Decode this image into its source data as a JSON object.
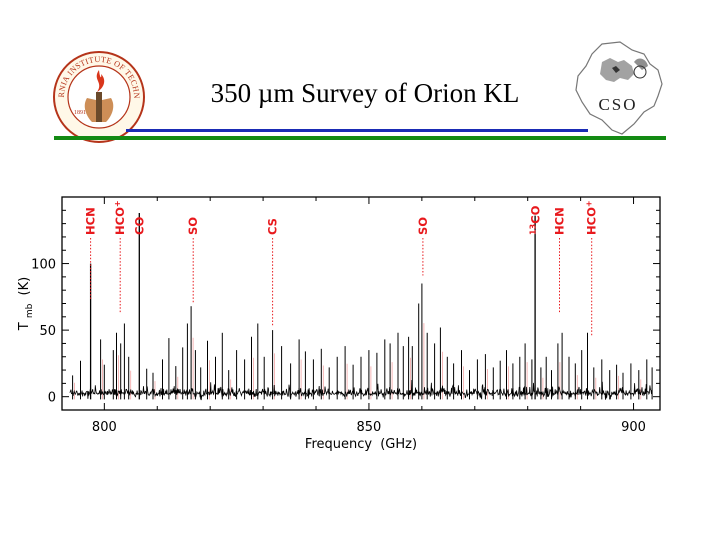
{
  "slide": {
    "title": "350 µm Survey of Orion KL"
  },
  "logos": {
    "left": {
      "name": "caltech-seal",
      "text": "CALIFORNIA INSTITUTE OF TECHNOLOGY",
      "year": "1891",
      "color": "#c23b1e"
    },
    "right": {
      "name": "cso-logo",
      "text": "CSO"
    }
  },
  "colors": {
    "title_rule": "#1a2bb5",
    "footer_rule": "#138a13",
    "line_label": "#e8191d",
    "spectrum": "#000000",
    "ghost": "#f08080"
  },
  "chart_data": {
    "type": "line",
    "xlabel": "Frequency",
    "xunit": "(GHz)",
    "ylabel": "T",
    "ylabel_sub": "mb",
    "yunit": "(K)",
    "xlim": [
      792,
      905
    ],
    "ylim": [
      -10,
      150
    ],
    "xticks": [
      800,
      850,
      900
    ],
    "yticks": [
      0,
      50,
      100
    ],
    "grid": false,
    "series": [
      {
        "peaks": [
          {
            "x": 794.0,
            "y": 16
          },
          {
            "x": 795.5,
            "y": 27
          },
          {
            "x": 797.4,
            "y": 100
          },
          {
            "x": 799.3,
            "y": 43
          },
          {
            "x": 800.0,
            "y": 24
          },
          {
            "x": 801.7,
            "y": 35
          },
          {
            "x": 802.3,
            "y": 48
          },
          {
            "x": 803.1,
            "y": 40
          },
          {
            "x": 803.8,
            "y": 55
          },
          {
            "x": 804.6,
            "y": 30
          },
          {
            "x": 806.6,
            "y": 138
          },
          {
            "x": 808.0,
            "y": 21
          },
          {
            "x": 809.2,
            "y": 18
          },
          {
            "x": 811.0,
            "y": 28
          },
          {
            "x": 812.2,
            "y": 44
          },
          {
            "x": 813.5,
            "y": 23
          },
          {
            "x": 814.8,
            "y": 37
          },
          {
            "x": 815.7,
            "y": 55
          },
          {
            "x": 816.4,
            "y": 68
          },
          {
            "x": 817.2,
            "y": 35
          },
          {
            "x": 818.2,
            "y": 22
          },
          {
            "x": 819.5,
            "y": 42
          },
          {
            "x": 821.0,
            "y": 30
          },
          {
            "x": 822.3,
            "y": 48
          },
          {
            "x": 823.5,
            "y": 20
          },
          {
            "x": 825.0,
            "y": 35
          },
          {
            "x": 826.5,
            "y": 28
          },
          {
            "x": 827.8,
            "y": 45
          },
          {
            "x": 829.0,
            "y": 55
          },
          {
            "x": 830.2,
            "y": 30
          },
          {
            "x": 831.8,
            "y": 50
          },
          {
            "x": 833.5,
            "y": 38
          },
          {
            "x": 835.2,
            "y": 25
          },
          {
            "x": 836.8,
            "y": 43
          },
          {
            "x": 838.0,
            "y": 34
          },
          {
            "x": 839.5,
            "y": 28
          },
          {
            "x": 841.0,
            "y": 36
          },
          {
            "x": 842.5,
            "y": 22
          },
          {
            "x": 844.0,
            "y": 30
          },
          {
            "x": 845.5,
            "y": 38
          },
          {
            "x": 847.0,
            "y": 24
          },
          {
            "x": 848.5,
            "y": 30
          },
          {
            "x": 850.0,
            "y": 35
          },
          {
            "x": 851.5,
            "y": 33
          },
          {
            "x": 853.0,
            "y": 43
          },
          {
            "x": 854.0,
            "y": 40
          },
          {
            "x": 855.5,
            "y": 48
          },
          {
            "x": 856.5,
            "y": 38
          },
          {
            "x": 857.5,
            "y": 45
          },
          {
            "x": 858.2,
            "y": 38
          },
          {
            "x": 859.4,
            "y": 70
          },
          {
            "x": 860.0,
            "y": 85
          },
          {
            "x": 861.0,
            "y": 48
          },
          {
            "x": 862.4,
            "y": 40
          },
          {
            "x": 863.5,
            "y": 52
          },
          {
            "x": 864.8,
            "y": 30
          },
          {
            "x": 866.0,
            "y": 25
          },
          {
            "x": 867.5,
            "y": 35
          },
          {
            "x": 869.0,
            "y": 20
          },
          {
            "x": 870.5,
            "y": 28
          },
          {
            "x": 872.0,
            "y": 32
          },
          {
            "x": 873.5,
            "y": 22
          },
          {
            "x": 874.8,
            "y": 27
          },
          {
            "x": 876.0,
            "y": 35
          },
          {
            "x": 877.2,
            "y": 25
          },
          {
            "x": 878.5,
            "y": 30
          },
          {
            "x": 879.5,
            "y": 40
          },
          {
            "x": 880.8,
            "y": 28
          },
          {
            "x": 881.4,
            "y": 136
          },
          {
            "x": 882.5,
            "y": 22
          },
          {
            "x": 883.5,
            "y": 30
          },
          {
            "x": 884.5,
            "y": 20
          },
          {
            "x": 885.7,
            "y": 40
          },
          {
            "x": 886.5,
            "y": 48
          },
          {
            "x": 887.8,
            "y": 30
          },
          {
            "x": 889.0,
            "y": 25
          },
          {
            "x": 890.2,
            "y": 35
          },
          {
            "x": 891.3,
            "y": 48
          },
          {
            "x": 892.5,
            "y": 22
          },
          {
            "x": 894.0,
            "y": 28
          },
          {
            "x": 895.5,
            "y": 20
          },
          {
            "x": 896.8,
            "y": 24
          },
          {
            "x": 898.0,
            "y": 18
          },
          {
            "x": 899.5,
            "y": 25
          },
          {
            "x": 901.0,
            "y": 20
          },
          {
            "x": 902.5,
            "y": 28
          },
          {
            "x": 903.5,
            "y": 22
          }
        ]
      }
    ],
    "annotations": [
      {
        "label": "HCN",
        "x": 797.4,
        "y_top": 70
      },
      {
        "label": "HCO+",
        "x": 803.0,
        "y_top": 60
      },
      {
        "label": "CO",
        "x": 806.6,
        "y_top": 145
      },
      {
        "label": "SO",
        "x": 816.8,
        "y_top": 68
      },
      {
        "label": "CS",
        "x": 831.8,
        "y_top": 50
      },
      {
        "label": "SO",
        "x": 860.2,
        "y_top": 88
      },
      {
        "label": "13CO",
        "x": 881.5,
        "y_top": 138
      },
      {
        "label": "HCN",
        "x": 886.0,
        "y_top": 60
      },
      {
        "label": "HCO+",
        "x": 892.1,
        "y_top": 42
      }
    ]
  }
}
